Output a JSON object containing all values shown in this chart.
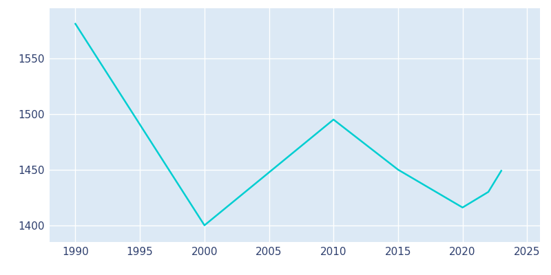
{
  "years": [
    1990,
    2000,
    2010,
    2015,
    2020,
    2022,
    2023
  ],
  "population": [
    1581,
    1400,
    1495,
    1450,
    1416,
    1430,
    1449
  ],
  "line_color": "#00CED1",
  "axes_bg_color": "#dce9f5",
  "fig_bg_color": "#ffffff",
  "tick_label_color": "#2e3f6e",
  "grid_color": "#ffffff",
  "xlim": [
    1988,
    2026
  ],
  "ylim": [
    1385,
    1595
  ],
  "xticks": [
    1990,
    1995,
    2000,
    2005,
    2010,
    2015,
    2020,
    2025
  ],
  "yticks": [
    1400,
    1450,
    1500,
    1550
  ],
  "line_width": 1.8
}
